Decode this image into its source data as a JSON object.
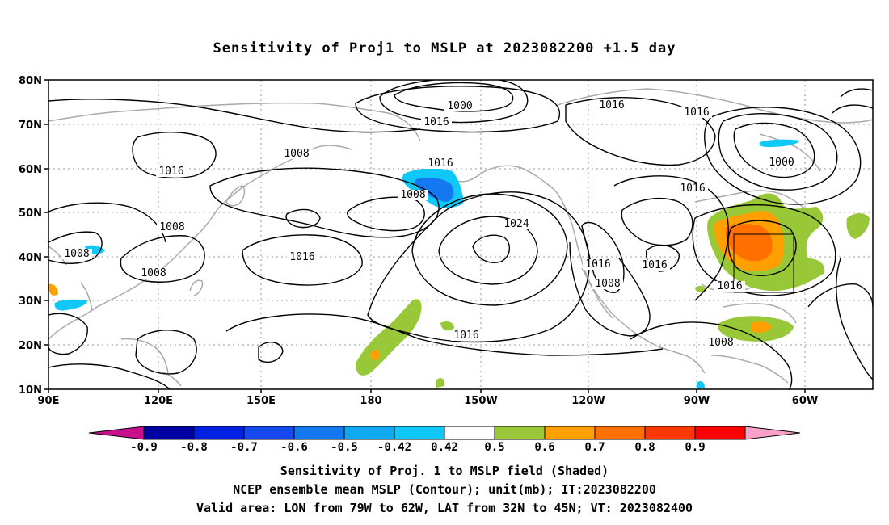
{
  "title": "Sensitivity of Proj1 to MSLP at 2023082200 +1.5 day",
  "map": {
    "lat_labels": [
      "80N",
      "70N",
      "60N",
      "50N",
      "40N",
      "30N",
      "20N",
      "10N"
    ],
    "lon_labels": [
      "90E",
      "120E",
      "150E",
      "180",
      "150W",
      "120W",
      "90W",
      "60W"
    ],
    "contour_labels": [
      {
        "text": "1000"
      },
      {
        "text": "1016"
      },
      {
        "text": "1016"
      },
      {
        "text": "1008"
      },
      {
        "text": "1016"
      },
      {
        "text": "1016"
      },
      {
        "text": "1016"
      },
      {
        "text": "1008"
      },
      {
        "text": "1008"
      },
      {
        "text": "1024"
      },
      {
        "text": "1016"
      },
      {
        "text": "1016"
      },
      {
        "text": "1008"
      },
      {
        "text": "1008"
      },
      {
        "text": "1008"
      },
      {
        "text": "1016"
      },
      {
        "text": "1016"
      },
      {
        "text": "1016"
      },
      {
        "text": "1008"
      },
      {
        "text": "1000"
      },
      {
        "text": "1016"
      }
    ],
    "valid_box": {
      "lon_from": "79W",
      "lon_to": "62W",
      "lat_from": "32N",
      "lat_to": "45N"
    }
  },
  "colorbar": {
    "labels": [
      "-0.9",
      "-0.8",
      "-0.7",
      "-0.6",
      "-0.5",
      "-0.42",
      "0.42",
      "0.5",
      "0.6",
      "0.7",
      "0.8",
      "0.9"
    ],
    "colors": [
      "#0000a0",
      "#0022e0",
      "#1848f0",
      "#1478f0",
      "#10a8f0",
      "#10c8f8",
      "#ffffff",
      "#98c838",
      "#ffa000",
      "#ff7000",
      "#ff3800",
      "#ff0000"
    ],
    "low_arrow_color": "#c8108c",
    "high_arrow_color": "#f8a0c8"
  },
  "captions": {
    "line1": "Sensitivity of Proj. 1 to MSLP field (Shaded)",
    "line2": "NCEP ensemble mean MSLP (Contour); unit(mb); IT:2023082200",
    "line3": "Valid area: LON from 79W to 62W, LAT from 32N to 45N; VT: 2023082400"
  }
}
